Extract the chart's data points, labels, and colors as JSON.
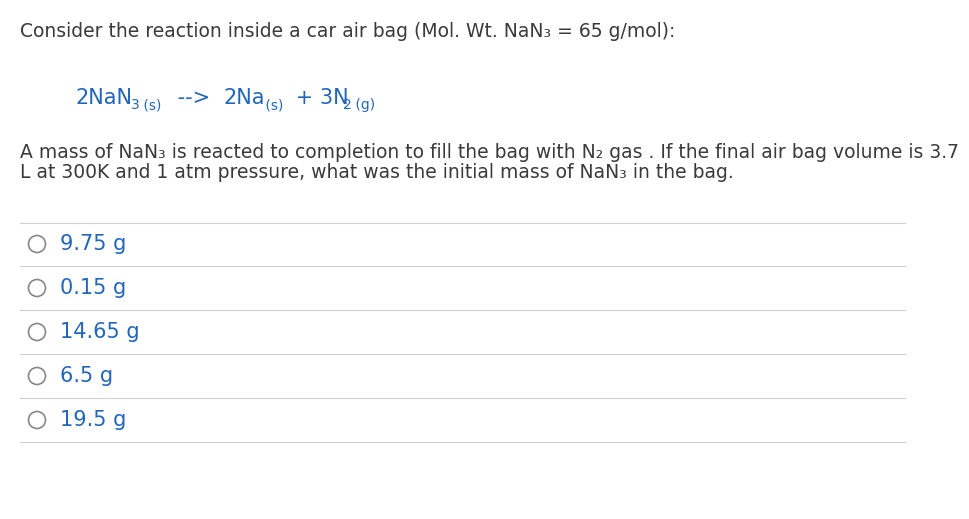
{
  "background_color": "#ffffff",
  "title_line": "Consider the reaction inside a car air bag (Mol. Wt. NaN₃ = 65 g/mol):",
  "body_line1": "A mass of NaN₃ is reacted to completion to fill the bag with N₂ gas . If the final air bag volume is 3.7",
  "body_line2": "L at 300K and 1 atm pressure, what was the initial mass of NaN₃ in the bag.",
  "options": [
    "9.75 g",
    "0.15 g",
    "14.65 g",
    "6.5 g",
    "19.5 g"
  ],
  "divider_color": "#d0d0d0",
  "text_color": "#3a3a3a",
  "circle_color": "#888888",
  "option_text_color": "#2266bb",
  "equation_color": "#2266bb",
  "title_fontsize": 13.5,
  "body_fontsize": 13.5,
  "option_fontsize": 15,
  "eq_main_fontsize": 15,
  "eq_sub_fontsize": 10
}
